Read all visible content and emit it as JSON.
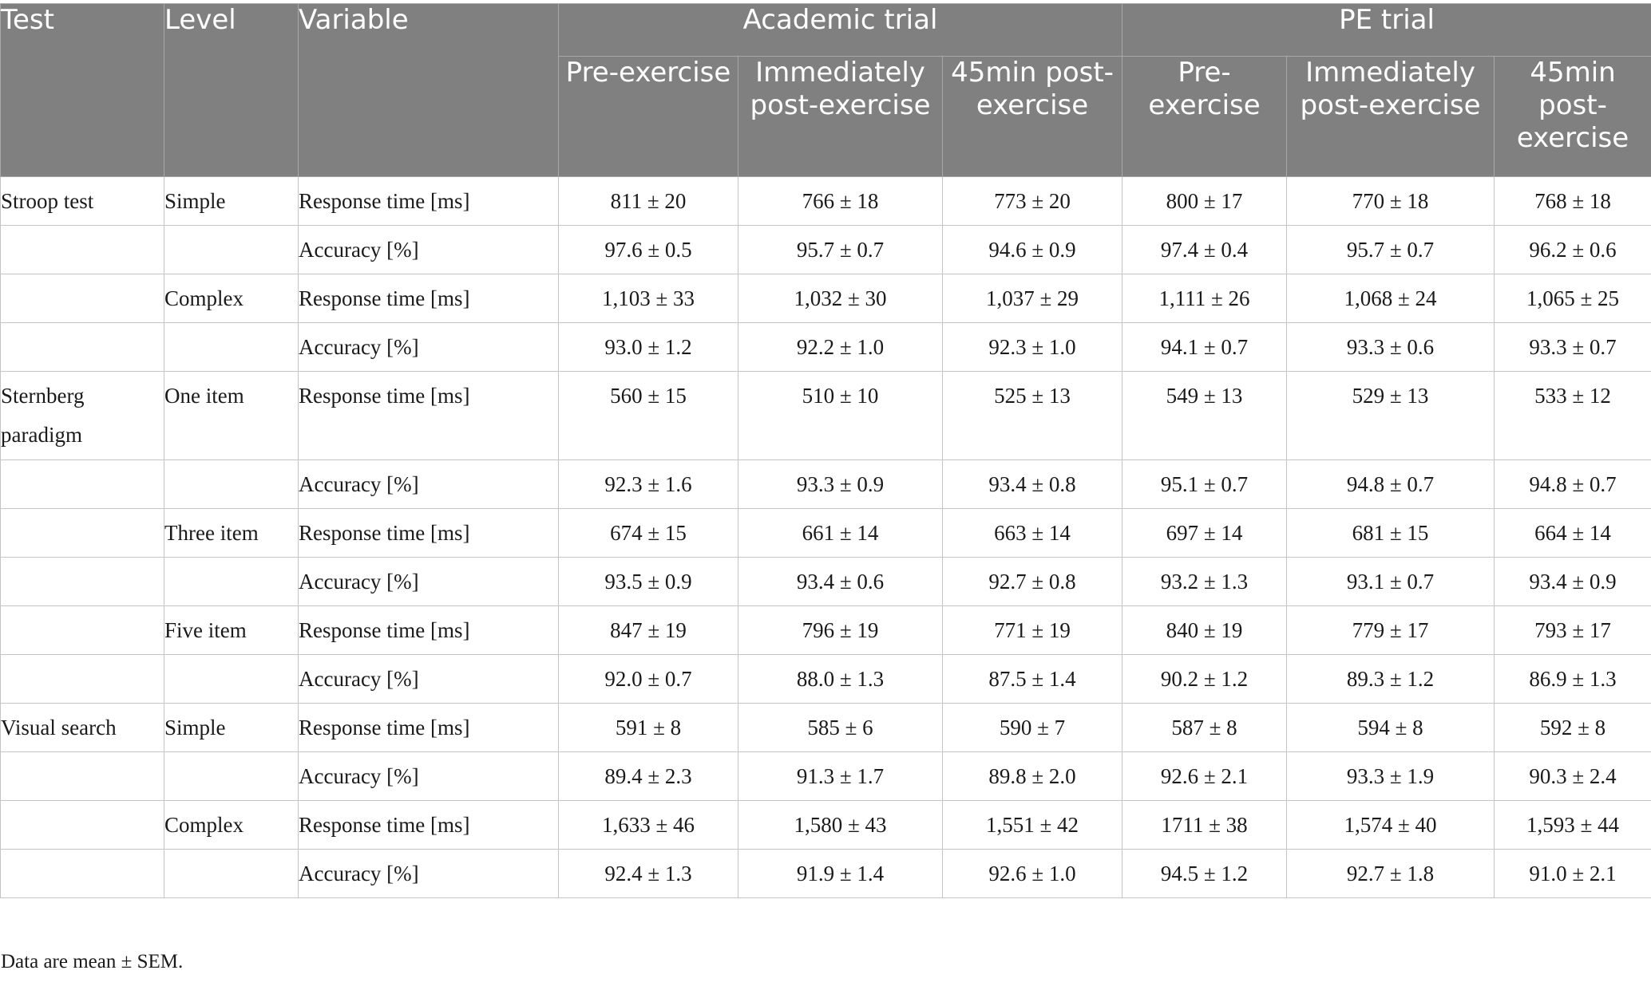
{
  "table": {
    "header_row1": {
      "test": "Test",
      "level": "Level",
      "variable": "Variable",
      "academic": "Academic trial",
      "pe": "PE trial"
    },
    "subheaders": [
      "Pre-exercise",
      "Immediately post-exercise",
      "45min post-exercise",
      "Pre-exercise",
      "Immediately post-exercise",
      "45min post-exercise"
    ],
    "rows": [
      {
        "test": "Stroop test",
        "level": "Simple",
        "variable": "Response time [ms]",
        "values": [
          "811 ± 20",
          "766 ± 18",
          "773 ± 20",
          "800 ± 17",
          "770 ± 18",
          "768 ± 18"
        ]
      },
      {
        "test": "",
        "level": "",
        "variable": "Accuracy [%]",
        "values": [
          "97.6 ± 0.5",
          "95.7 ± 0.7",
          "94.6 ± 0.9",
          "97.4 ± 0.4",
          "95.7 ± 0.7",
          "96.2 ± 0.6"
        ]
      },
      {
        "test": "",
        "level": "Complex",
        "variable": "Response time [ms]",
        "values": [
          "1,103 ± 33",
          "1,032 ± 30",
          "1,037 ± 29",
          "1,111 ± 26",
          "1,068 ± 24",
          "1,065 ± 25"
        ]
      },
      {
        "test": "",
        "level": "",
        "variable": "Accuracy [%]",
        "values": [
          "93.0 ± 1.2",
          "92.2 ± 1.0",
          "92.3 ± 1.0",
          "94.1 ± 0.7",
          "93.3 ± 0.6",
          "93.3 ± 0.7"
        ]
      },
      {
        "test": "Sternberg paradigm",
        "level": "One item",
        "variable": "Response time [ms]",
        "values": [
          "560 ± 15",
          "510 ± 10",
          "525 ± 13",
          "549 ± 13",
          "529 ± 13",
          "533 ± 12"
        ]
      },
      {
        "test": "",
        "level": "",
        "variable": "Accuracy [%]",
        "values": [
          "92.3 ± 1.6",
          "93.3 ± 0.9",
          "93.4 ± 0.8",
          "95.1 ± 0.7",
          "94.8 ± 0.7",
          "94.8 ± 0.7"
        ]
      },
      {
        "test": "",
        "level": "Three item",
        "variable": "Response time [ms]",
        "values": [
          "674 ± 15",
          "661 ± 14",
          "663 ± 14",
          "697 ± 14",
          "681 ± 15",
          "664 ± 14"
        ]
      },
      {
        "test": "",
        "level": "",
        "variable": "Accuracy [%]",
        "values": [
          "93.5 ± 0.9",
          "93.4 ± 0.6",
          "92.7 ± 0.8",
          "93.2 ± 1.3",
          "93.1 ± 0.7",
          "93.4 ± 0.9"
        ]
      },
      {
        "test": "",
        "level": "Five item",
        "variable": "Response time [ms]",
        "values": [
          "847 ± 19",
          "796 ± 19",
          "771 ± 19",
          "840 ± 19",
          "779 ± 17",
          "793 ± 17"
        ]
      },
      {
        "test": "",
        "level": "",
        "variable": "Accuracy [%]",
        "values": [
          "92.0 ± 0.7",
          "88.0 ± 1.3",
          "87.5 ± 1.4",
          "90.2 ± 1.2",
          "89.3 ± 1.2",
          "86.9 ± 1.3"
        ]
      },
      {
        "test": "Visual search",
        "level": "Simple",
        "variable": "Response time [ms]",
        "values": [
          "591 ± 8",
          "585 ± 6",
          "590 ± 7",
          "587 ± 8",
          "594 ± 8",
          "592 ± 8"
        ]
      },
      {
        "test": "",
        "level": "",
        "variable": "Accuracy [%]",
        "values": [
          "89.4 ± 2.3",
          "91.3 ± 1.7",
          "89.8 ± 2.0",
          "92.6 ± 2.1",
          "93.3 ± 1.9",
          "90.3 ± 2.4"
        ]
      },
      {
        "test": "",
        "level": "Complex",
        "variable": "Response time [ms]",
        "values": [
          "1,633 ± 46",
          "1,580 ± 43",
          "1,551 ± 42",
          "1711 ± 38",
          "1,574 ± 40",
          "1,593 ± 44"
        ]
      },
      {
        "test": "",
        "level": "",
        "variable": "Accuracy [%]",
        "values": [
          "92.4 ± 1.3",
          "91.9 ± 1.4",
          "92.6 ± 1.0",
          "94.5 ± 1.2",
          "92.7 ± 1.8",
          "91.0 ± 2.1"
        ]
      }
    ]
  },
  "footnote": "Data are mean ± SEM.",
  "colors": {
    "header_bg": "#808080",
    "header_text": "#ffffff",
    "grid": "#c4c4c4"
  }
}
